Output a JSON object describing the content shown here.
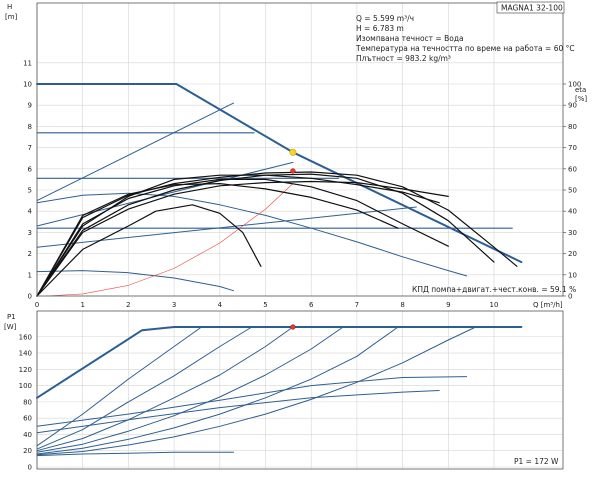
{
  "chart_data": [
    {
      "type": "line",
      "panel": "head-and-efficiency",
      "title": "MAGNA1 32-100",
      "ylabel": "H",
      "ylabel_unit": "[m]",
      "y2label": "eta",
      "y2label_unit": "[%]",
      "xlabel": "Q [m³/h]",
      "xlim": [
        0,
        11.5
      ],
      "ylim": [
        0,
        11
      ],
      "y2lim": [
        0,
        110
      ],
      "x_ticks": [
        "0",
        "1",
        "2",
        "3",
        "4",
        "5",
        "6",
        "7",
        "8",
        "9",
        "10"
      ],
      "y_ticks": [
        "0",
        "1",
        "2",
        "3",
        "4",
        "5",
        "6",
        "7",
        "8",
        "9",
        "10",
        "11"
      ],
      "y2_ticks": [
        "0",
        "10",
        "20",
        "30",
        "40",
        "50",
        "60",
        "70",
        "80",
        "90",
        "100"
      ],
      "grid": true,
      "info_lines": [
        "Q = 5.599 m³/ч",
        "H = 6.783 m",
        "Изомпвана течност = Вода",
        "Температура на течността по време на работа = 60 °C",
        "Плътност = 983.2 kg/m³"
      ],
      "efficiency_note": "КПД помпа+двигат.+чест.конв. = 59.1 %",
      "operating_point": {
        "q": 5.6,
        "h": 6.78
      },
      "efficiency_point": {
        "q": 5.6,
        "h": 5.9
      },
      "series": [
        {
          "role": "max-curve",
          "points": [
            [
              0,
              10
            ],
            [
              3.05,
              10
            ],
            [
              5.6,
              6.78
            ],
            [
              10.6,
              1.6
            ]
          ]
        },
        {
          "role": "proportional-pressure",
          "points": [
            [
              0,
              4.5
            ],
            [
              4.3,
              9.1
            ]
          ]
        },
        {
          "role": "proportional-pressure",
          "points": [
            [
              0,
              3.3
            ],
            [
              5.6,
              6.3
            ]
          ]
        },
        {
          "role": "proportional-pressure",
          "points": [
            [
              0,
              2.3
            ],
            [
              8.3,
              4.2
            ]
          ]
        },
        {
          "role": "constant-pressure",
          "points": [
            [
              0,
              7.7
            ],
            [
              4.75,
              7.7
            ]
          ]
        },
        {
          "role": "constant-pressure",
          "points": [
            [
              0,
              5.55
            ],
            [
              6.6,
              5.55
            ]
          ]
        },
        {
          "role": "constant-pressure",
          "points": [
            [
              0,
              3.2
            ],
            [
              10.4,
              3.2
            ]
          ]
        },
        {
          "role": "speed-curve",
          "points": [
            [
              0,
              4.4
            ],
            [
              1,
              4.75
            ],
            [
              2,
              4.85
            ],
            [
              3,
              4.7
            ],
            [
              4,
              4.3
            ],
            [
              5,
              3.8
            ],
            [
              6,
              3.2
            ],
            [
              7,
              2.55
            ],
            [
              8,
              1.85
            ],
            [
              9,
              1.2
            ],
            [
              9.4,
              0.95
            ]
          ]
        },
        {
          "role": "speed-curve",
          "points": [
            [
              0,
              1.15
            ],
            [
              1,
              1.2
            ],
            [
              2,
              1.1
            ],
            [
              3,
              0.85
            ],
            [
              4,
              0.45
            ],
            [
              4.3,
              0.25
            ]
          ]
        },
        {
          "role": "resistance-curve",
          "points": [
            [
              0.2,
              0
            ],
            [
              1,
              0.1
            ],
            [
              2,
              0.5
            ],
            [
              3,
              1.3
            ],
            [
              4,
              2.5
            ],
            [
              5,
              4.1
            ],
            [
              5.6,
              5.3
            ]
          ]
        },
        {
          "role": "efficiency-curve",
          "points": [
            [
              0,
              0
            ],
            [
              1,
              3.7
            ],
            [
              2,
              4.75
            ],
            [
              3,
              5.3
            ],
            [
              4,
              5.6
            ],
            [
              5,
              5.8
            ],
            [
              6,
              5.85
            ],
            [
              7,
              5.7
            ],
            [
              8,
              5.15
            ],
            [
              9,
              4.05
            ],
            [
              10,
              2.3
            ],
            [
              10.5,
              1.4
            ]
          ]
        },
        {
          "role": "efficiency-curve",
          "points": [
            [
              0,
              0
            ],
            [
              1,
              3.1
            ],
            [
              2,
              4.3
            ],
            [
              3,
              5
            ],
            [
              4,
              5.45
            ],
            [
              5,
              5.7
            ],
            [
              6,
              5.75
            ],
            [
              7,
              5.55
            ],
            [
              8,
              4.85
            ],
            [
              9,
              3.55
            ],
            [
              10,
              1.6
            ]
          ]
        },
        {
          "role": "efficiency-curve",
          "points": [
            [
              0,
              0
            ],
            [
              1,
              3.4
            ],
            [
              2,
              4.6
            ],
            [
              3,
              5.2
            ],
            [
              4,
              5.5
            ],
            [
              5,
              5.5
            ],
            [
              6,
              5.15
            ],
            [
              7,
              4.5
            ],
            [
              8,
              3.4
            ],
            [
              9,
              2.35
            ]
          ]
        },
        {
          "role": "efficiency-curve",
          "points": [
            [
              0,
              0
            ],
            [
              1,
              3.8
            ],
            [
              2,
              4.8
            ],
            [
              3,
              5.25
            ],
            [
              4,
              5.3
            ],
            [
              5,
              5.05
            ],
            [
              6,
              4.65
            ],
            [
              7,
              4.05
            ],
            [
              7.9,
              3.2
            ]
          ]
        },
        {
          "role": "efficiency-curve",
          "points": [
            [
              0,
              0
            ],
            [
              1,
              3.3
            ],
            [
              2,
              4.7
            ],
            [
              3,
              5.5
            ],
            [
              4,
              5.7
            ],
            [
              5,
              5.7
            ],
            [
              6,
              5.55
            ],
            [
              7,
              5.25
            ],
            [
              8,
              4.9
            ],
            [
              8.8,
              4.4
            ]
          ]
        },
        {
          "role": "efficiency-curve",
          "points": [
            [
              0,
              0
            ],
            [
              1,
              2.2
            ],
            [
              2,
              3.3
            ],
            [
              2.6,
              4.0
            ],
            [
              3.4,
              4.3
            ],
            [
              4,
              3.9
            ],
            [
              4.5,
              3.0
            ],
            [
              4.9,
              1.4
            ]
          ]
        },
        {
          "role": "efficiency-curve",
          "points": [
            [
              0,
              0
            ],
            [
              1,
              3.0
            ],
            [
              2,
              4.1
            ],
            [
              3,
              4.8
            ],
            [
              4,
              5.2
            ],
            [
              5,
              5.35
            ],
            [
              6,
              5.4
            ],
            [
              7,
              5.35
            ],
            [
              8,
              5.05
            ],
            [
              9,
              4.7
            ]
          ]
        }
      ]
    },
    {
      "type": "line",
      "panel": "power",
      "ylabel": "P1",
      "ylabel_unit": "[W]",
      "xlim": [
        0,
        11.5
      ],
      "ylim": [
        0,
        180
      ],
      "y_ticks": [
        "0",
        "20",
        "40",
        "60",
        "80",
        "100",
        "120",
        "140",
        "160"
      ],
      "grid": true,
      "power_note": "P1 = 172 W",
      "operating_point": {
        "q": 5.6,
        "p": 172
      },
      "series": [
        {
          "role": "max-power",
          "points": [
            [
              0,
              85
            ],
            [
              2.3,
              168
            ],
            [
              3,
              172
            ],
            [
              10.6,
              172
            ]
          ]
        },
        {
          "role": "power-curve",
          "points": [
            [
              0,
              26
            ],
            [
              1,
              65
            ],
            [
              2,
              108
            ],
            [
              3,
              148
            ],
            [
              3.6,
              172
            ]
          ]
        },
        {
          "role": "power-curve",
          "points": [
            [
              0,
              22
            ],
            [
              1,
              46
            ],
            [
              2,
              80
            ],
            [
              3,
              112
            ],
            [
              4,
              148
            ],
            [
              4.7,
              172
            ]
          ]
        },
        {
          "role": "power-curve",
          "points": [
            [
              0,
              20
            ],
            [
              1,
              35
            ],
            [
              2,
              58
            ],
            [
              3,
              85
            ],
            [
              4,
              113
            ],
            [
              5,
              148
            ],
            [
              5.6,
              172
            ]
          ]
        },
        {
          "role": "power-curve",
          "points": [
            [
              0,
              18
            ],
            [
              1,
              28
            ],
            [
              2,
              44
            ],
            [
              3,
              63
            ],
            [
              4,
              86
            ],
            [
              5,
              113
            ],
            [
              6,
              145
            ],
            [
              6.7,
              172
            ]
          ]
        },
        {
          "role": "power-curve",
          "points": [
            [
              0,
              16
            ],
            [
              1,
              23
            ],
            [
              2,
              34
            ],
            [
              3,
              48
            ],
            [
              4,
              65
            ],
            [
              5,
              85
            ],
            [
              6,
              108
            ],
            [
              7,
              136
            ],
            [
              7.9,
              172
            ]
          ]
        },
        {
          "role": "power-curve",
          "points": [
            [
              0,
              15
            ],
            [
              1,
              19
            ],
            [
              2,
              27
            ],
            [
              3,
              37
            ],
            [
              4,
              50
            ],
            [
              5,
              65
            ],
            [
              6,
              83
            ],
            [
              7,
              104
            ],
            [
              8,
              128
            ],
            [
              9,
              156
            ],
            [
              9.6,
              172
            ]
          ]
        },
        {
          "role": "power-curve",
          "points": [
            [
              0,
              50
            ],
            [
              2,
              65
            ],
            [
              4,
              82
            ],
            [
              6,
              100
            ],
            [
              8,
              110
            ],
            [
              9.4,
              111
            ]
          ]
        },
        {
          "role": "power-curve",
          "points": [
            [
              0,
              42
            ],
            [
              2,
              58
            ],
            [
              4,
              73
            ],
            [
              6,
              85
            ],
            [
              8,
              92
            ],
            [
              8.8,
              94
            ]
          ]
        },
        {
          "role": "power-curve",
          "points": [
            [
              0,
              14
            ],
            [
              1,
              16
            ],
            [
              2,
              17
            ],
            [
              3,
              18
            ],
            [
              4.3,
              18
            ]
          ]
        }
      ]
    }
  ]
}
